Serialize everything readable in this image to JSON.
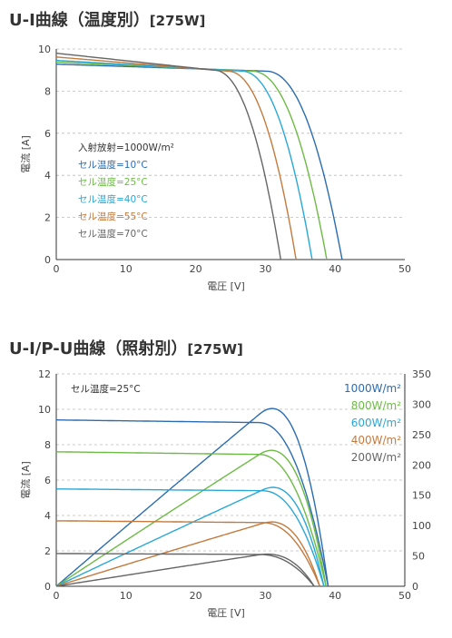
{
  "chart_data": [
    {
      "type": "line",
      "title": "U-I曲線（温度別）",
      "title_suffix": "[275W]",
      "xlabel": "電圧 [V]",
      "ylabel": "電流 [A]",
      "xlim": [
        0,
        50
      ],
      "ylim": [
        0,
        10
      ],
      "x_ticks": [
        "0",
        "10",
        "20",
        "30",
        "40",
        "50"
      ],
      "y_ticks": [
        "0",
        "2",
        "4",
        "6",
        "8",
        "10"
      ],
      "grid": "horizontal dashed",
      "legend_title": "入射放射=1000W/m²",
      "legend_position": "left-center",
      "series": [
        {
          "name": "セル温度=10°C",
          "color": "#2b6cb0",
          "isc": 9.28,
          "voc": 41.0,
          "knee_v": 30.0,
          "knee_i": 8.95
        },
        {
          "name": "セル温度=25°C",
          "color": "#6dbb45",
          "isc": 9.38,
          "voc": 38.8,
          "knee_v": 28.0,
          "knee_i": 8.95
        },
        {
          "name": "セル温度=40°C",
          "color": "#29a8d6",
          "isc": 9.46,
          "voc": 36.7,
          "knee_v": 26.5,
          "knee_i": 8.95
        },
        {
          "name": "セル温度=55°C",
          "color": "#c47a3d",
          "isc": 9.62,
          "voc": 34.4,
          "knee_v": 24.5,
          "knee_i": 8.95
        },
        {
          "name": "セル温度=70°C",
          "color": "#666666",
          "isc": 9.8,
          "voc": 32.2,
          "knee_v": 22.5,
          "knee_i": 9.0
        }
      ]
    },
    {
      "type": "line",
      "title": "U-I/P-U曲線（照射別）",
      "title_suffix": "[275W]",
      "xlabel": "電圧 [V]",
      "ylabel": "電流 [A]",
      "xlim": [
        0,
        50
      ],
      "ylim": [
        0,
        12
      ],
      "y2lim": [
        0,
        350
      ],
      "x_ticks": [
        "0",
        "10",
        "20",
        "30",
        "40",
        "50"
      ],
      "y_ticks": [
        "0",
        "2",
        "4",
        "6",
        "8",
        "10",
        "12"
      ],
      "y2_ticks": [
        "0",
        "50",
        "100",
        "150",
        "200",
        "250",
        "300",
        "350"
      ],
      "grid": "horizontal dashed",
      "annotation": "セル温度=25°C",
      "legend_position": "top-right",
      "series": [
        {
          "name": "1000W/m²",
          "color": "#2b6cb0",
          "isc": 9.4,
          "voc": 39.0,
          "knee_v": 29.0,
          "knee_i": 9.25,
          "pmax_v": 31.5,
          "pmax_p": 293
        },
        {
          "name": "800W/m²",
          "color": "#6dbb45",
          "isc": 7.6,
          "voc": 38.7,
          "knee_v": 29.0,
          "knee_i": 7.45,
          "pmax_v": 31.5,
          "pmax_p": 224
        },
        {
          "name": "600W/m²",
          "color": "#29a8d6",
          "isc": 5.5,
          "voc": 38.4,
          "knee_v": 29.5,
          "knee_i": 5.4,
          "pmax_v": 31.5,
          "pmax_p": 163
        },
        {
          "name": "400W/m²",
          "color": "#c47a3d",
          "isc": 3.7,
          "voc": 37.8,
          "knee_v": 29.5,
          "knee_i": 3.6,
          "pmax_v": 30.5,
          "pmax_p": 106
        },
        {
          "name": "200W/m²",
          "color": "#666666",
          "isc": 1.85,
          "voc": 37.0,
          "knee_v": 29.0,
          "knee_i": 1.8,
          "pmax_v": 30.0,
          "pmax_p": 53
        }
      ]
    }
  ]
}
